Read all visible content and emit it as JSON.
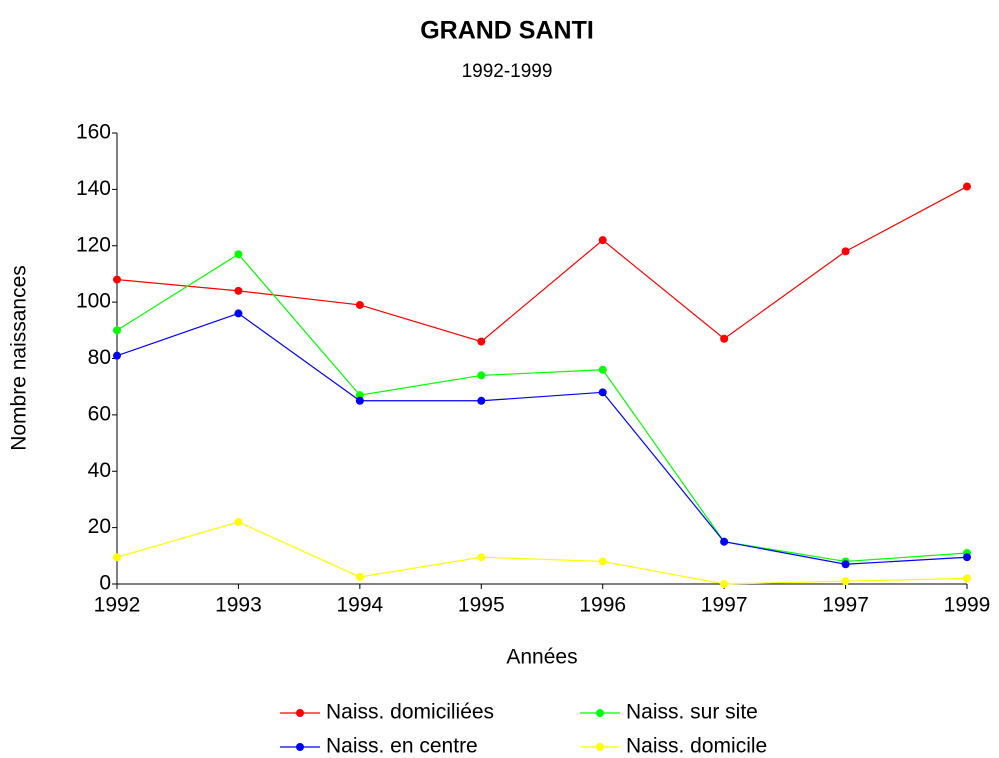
{
  "chart_data": {
    "type": "line",
    "title": "GRAND SANTI",
    "subtitle": "1992-1999",
    "x_label": "Années",
    "y_label": "Nombre naissances",
    "categories": [
      "1992",
      "1993",
      "1994",
      "1995",
      "1996",
      "1997",
      "1997",
      "1999"
    ],
    "series": [
      {
        "name": "Naiss. domiciliées",
        "color": "#ff0000",
        "values": [
          108,
          104,
          99,
          86,
          122,
          87,
          118,
          141
        ]
      },
      {
        "name": "Naiss. sur site",
        "color": "#00ff00",
        "values": [
          90,
          117,
          67,
          74,
          76,
          15,
          8,
          11
        ]
      },
      {
        "name": "Naiss. en centre",
        "color": "#0000ff",
        "values": [
          81,
          96,
          65,
          65,
          68,
          15,
          7,
          9.5
        ]
      },
      {
        "name": "Naiss. domicile",
        "color": "#ffff00",
        "values": [
          9.5,
          22,
          2.5,
          9.5,
          8,
          0,
          1,
          2
        ]
      }
    ],
    "ylim": [
      0,
      160
    ],
    "yticks": [
      0,
      20,
      40,
      60,
      80,
      100,
      120,
      140,
      160
    ],
    "grid": false
  }
}
